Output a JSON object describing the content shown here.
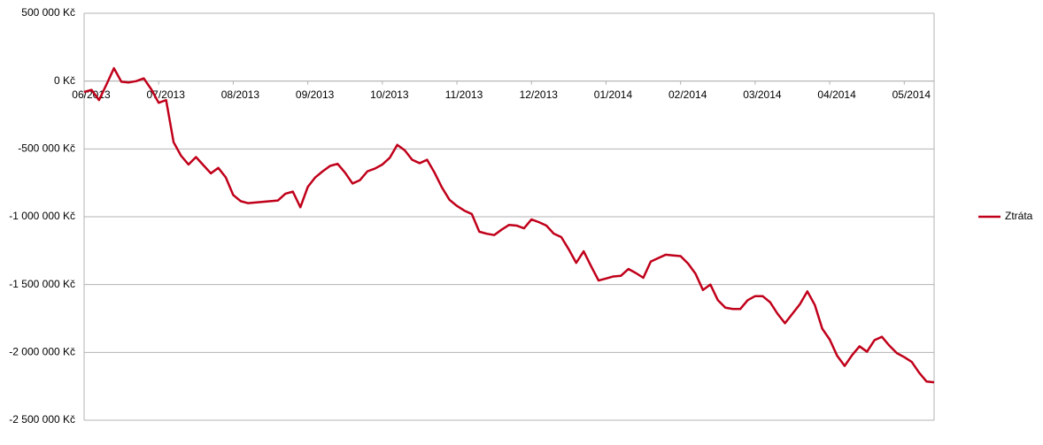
{
  "chart_data": {
    "type": "line",
    "categories": [
      "06/2013",
      null,
      null,
      null,
      null,
      null,
      null,
      null,
      null,
      null,
      "07/2013",
      null,
      null,
      null,
      null,
      null,
      null,
      null,
      null,
      null,
      "08/2013",
      null,
      null,
      null,
      null,
      null,
      null,
      null,
      null,
      null,
      "09/2013",
      null,
      null,
      null,
      null,
      null,
      null,
      null,
      null,
      null,
      "10/2013",
      null,
      null,
      null,
      null,
      null,
      null,
      null,
      null,
      null,
      "11/2013",
      null,
      null,
      null,
      null,
      null,
      null,
      null,
      null,
      null,
      "12/2013",
      null,
      null,
      null,
      null,
      null,
      null,
      null,
      null,
      null,
      "01/2014",
      null,
      null,
      null,
      null,
      null,
      null,
      null,
      null,
      null,
      "02/2014",
      null,
      null,
      null,
      null,
      null,
      null,
      null,
      null,
      null,
      "03/2014",
      null,
      null,
      null,
      null,
      null,
      null,
      null,
      null,
      null,
      "04/2014",
      null,
      null,
      null,
      null,
      null,
      null,
      null,
      null,
      null,
      "05/2014",
      null,
      null,
      null,
      null
    ],
    "series": [
      {
        "name": "Ztráta",
        "color": "#c0001a",
        "values": [
          -80000,
          -65000,
          -140000,
          -25000,
          95000,
          -5000,
          -10000,
          0,
          20000,
          -60000,
          -160000,
          -140000,
          -450000,
          -550000,
          -615000,
          -560000,
          -620000,
          -680000,
          -640000,
          -710000,
          -840000,
          -885000,
          -900000,
          -895000,
          -890000,
          -885000,
          -880000,
          -830000,
          -815000,
          -930000,
          -780000,
          -710000,
          -665000,
          -625000,
          -610000,
          -675000,
          -755000,
          -730000,
          -665000,
          -645000,
          -615000,
          -565000,
          -470000,
          -510000,
          -580000,
          -605000,
          -580000,
          -675000,
          -785000,
          -875000,
          -920000,
          -955000,
          -980000,
          -1110000,
          -1125000,
          -1135000,
          -1095000,
          -1060000,
          -1065000,
          -1085000,
          -1020000,
          -1040000,
          -1065000,
          -1125000,
          -1150000,
          -1240000,
          -1340000,
          -1255000,
          -1365000,
          -1470000,
          -1455000,
          -1440000,
          -1435000,
          -1385000,
          -1415000,
          -1450000,
          -1330000,
          -1305000,
          -1280000,
          -1285000,
          -1290000,
          -1345000,
          -1420000,
          -1540000,
          -1500000,
          -1615000,
          -1670000,
          -1680000,
          -1680000,
          -1615000,
          -1585000,
          -1585000,
          -1630000,
          -1715000,
          -1785000,
          -1715000,
          -1645000,
          -1550000,
          -1650000,
          -1825000,
          -1905000,
          -2025000,
          -2100000,
          -2020000,
          -1955000,
          -1995000,
          -1910000,
          -1885000,
          -1950000,
          -2005000,
          -2035000,
          -2070000,
          -2150000,
          -2215000,
          -2220000
        ]
      }
    ],
    "ylim": [
      -2500000,
      500000
    ],
    "yticks": [
      {
        "value": 500000,
        "label": "500 000 Kč"
      },
      {
        "value": 0,
        "label": "0 Kč"
      },
      {
        "value": -500000,
        "label": "-500 000 Kč"
      },
      {
        "value": -1000000,
        "label": "-1 000 000 Kč"
      },
      {
        "value": -1500000,
        "label": "-1 500 000 Kč"
      },
      {
        "value": -2000000,
        "label": "-2 000 000 Kč"
      },
      {
        "value": -2500000,
        "label": "-2 500 000 Kč"
      }
    ],
    "grid": true,
    "legend": "right"
  }
}
